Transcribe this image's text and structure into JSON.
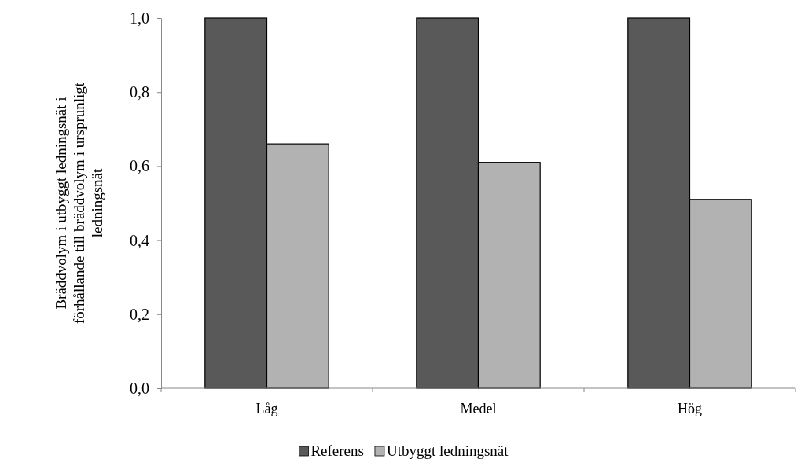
{
  "chart_data": {
    "type": "bar",
    "ylabel": "Bräddvolym i utbyggt ledningsnät i förhållande till bräddvolym i ursprunligt ledningsnät",
    "categories": [
      "Låg",
      "Medel",
      "Hög"
    ],
    "series": [
      {
        "name": "Referens",
        "color": "#595959",
        "values": [
          1.0,
          1.0,
          1.0
        ]
      },
      {
        "name": "Utbyggt ledningsnät",
        "color": "#b2b2b2",
        "values": [
          0.66,
          0.61,
          0.51
        ]
      }
    ],
    "ylim": [
      0,
      1
    ],
    "yticks": [
      {
        "value": 0,
        "label": "0,0"
      },
      {
        "value": 0.2,
        "label": "0,2"
      },
      {
        "value": 0.4,
        "label": "0,4"
      },
      {
        "value": 0.6,
        "label": "0,6"
      },
      {
        "value": 0.8,
        "label": "0,8"
      },
      {
        "value": 1,
        "label": "1,0"
      }
    ],
    "grid": false,
    "legend": "bottom"
  }
}
